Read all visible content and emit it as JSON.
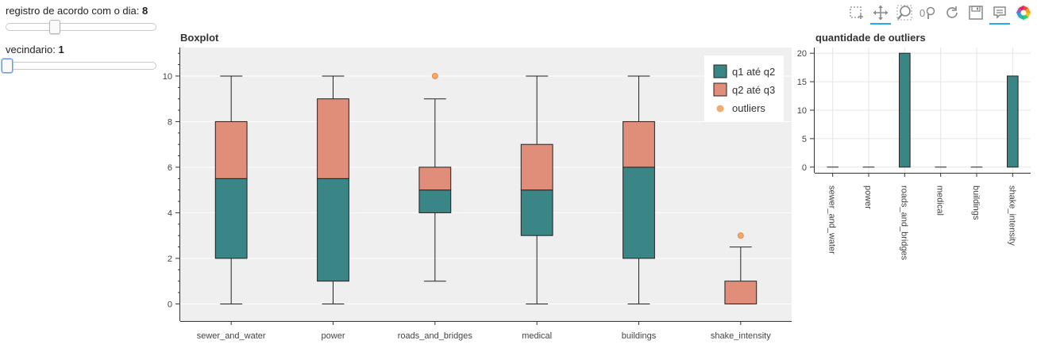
{
  "controls": {
    "day_slider": {
      "label": "registro de acordo com o dia: ",
      "value": "8",
      "min": 0,
      "max": 25,
      "current": 8
    },
    "neighborhood_slider": {
      "label": "vecindario: ",
      "value": "1",
      "min": 1,
      "max": 19,
      "current": 1
    }
  },
  "toolbar": {
    "tools": [
      {
        "name": "box-zoom-icon",
        "active": false
      },
      {
        "name": "pan-icon",
        "active": true
      },
      {
        "name": "zoom-icon",
        "active": false
      },
      {
        "name": "zoom-axis-icon",
        "active": false
      },
      {
        "name": "reset-icon",
        "active": false
      },
      {
        "name": "save-icon",
        "active": false
      },
      {
        "name": "hover-icon",
        "active": true
      },
      {
        "name": "bokeh-logo-icon",
        "active": false
      }
    ]
  },
  "chart_data": [
    {
      "type": "boxplot",
      "title": "Boxplot",
      "categories": [
        "sewer_and_water",
        "power",
        "roads_and_bridges",
        "medical",
        "buildings",
        "shake_intensity"
      ],
      "boxes": [
        {
          "min": 0,
          "q1": 2,
          "q2": 5.5,
          "q3": 8,
          "max": 10
        },
        {
          "min": 0,
          "q1": 1,
          "q2": 5.5,
          "q3": 9,
          "max": 10
        },
        {
          "min": 1,
          "q1": 4,
          "q2": 5,
          "q3": 6,
          "max": 9
        },
        {
          "min": 0,
          "q1": 3,
          "q2": 5,
          "q3": 7,
          "max": 10
        },
        {
          "min": 0,
          "q1": 2,
          "q2": 6,
          "q3": 8,
          "max": 10
        },
        {
          "min": 0,
          "q1": 0,
          "q2": 0,
          "q3": 1,
          "max": 2.5
        }
      ],
      "outliers": [
        {
          "category": "roads_and_bridges",
          "value": 10
        },
        {
          "category": "shake_intensity",
          "value": 3
        }
      ],
      "ylim": [
        -0.75,
        11.25
      ],
      "yticks": [
        0,
        2,
        4,
        6,
        8,
        10
      ],
      "legend": {
        "position": "top-right",
        "items": [
          {
            "label": "q1 até q2",
            "color": "#3a8586"
          },
          {
            "label": "q2 até q3",
            "color": "#e08e79"
          },
          {
            "label": "outliers",
            "color": "#f4a261"
          }
        ]
      },
      "colors": {
        "lower": "#3a8586",
        "upper": "#e08e79",
        "outlier": "#f4a261",
        "background": "#efefef"
      },
      "grid": true
    },
    {
      "type": "bar",
      "title": "quantidade de outliers",
      "categories": [
        "sewer_and_water",
        "power",
        "roads_and_bridges",
        "medical",
        "buildings",
        "shake_intensity"
      ],
      "values": [
        0,
        0,
        20,
        0,
        0,
        16
      ],
      "ylim": [
        -1,
        21
      ],
      "yticks": [
        0,
        5,
        10,
        15,
        20
      ],
      "color": "#3a8586",
      "grid": true
    }
  ]
}
